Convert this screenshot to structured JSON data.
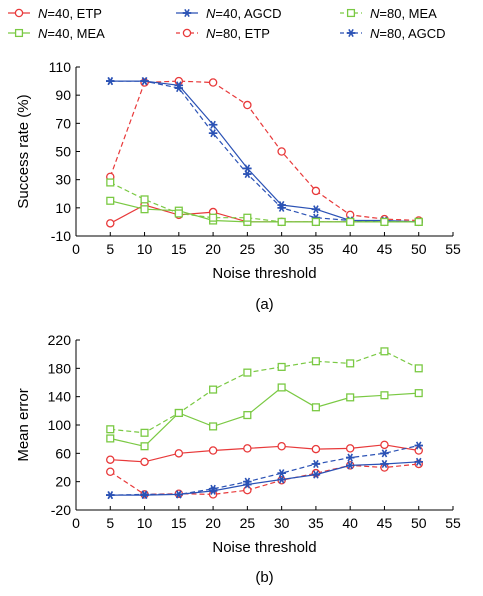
{
  "legend": [
    {
      "series": "N40_ETP",
      "n": "N",
      "rest": "=40, ETP"
    },
    {
      "series": "N40_AGCD",
      "n": "N",
      "rest": "=40, AGCD"
    },
    {
      "series": "N80_MEA",
      "n": "N",
      "rest": "=80, MEA"
    },
    {
      "series": "N40_MEA",
      "n": "N",
      "rest": "=40, MEA"
    },
    {
      "series": "N80_ETP",
      "n": "N",
      "rest": "=80, ETP"
    },
    {
      "series": "N80_AGCD",
      "n": "N",
      "rest": "=80, AGCD"
    }
  ],
  "series_styles": {
    "N40_ETP": {
      "color": "#e8393a",
      "marker": "circle",
      "dash": false
    },
    "N80_ETP": {
      "color": "#e8393a",
      "marker": "circle",
      "dash": true
    },
    "N40_AGCD": {
      "color": "#2b52b5",
      "marker": "star",
      "dash": false
    },
    "N80_AGCD": {
      "color": "#2b52b5",
      "marker": "star",
      "dash": true
    },
    "N40_MEA": {
      "color": "#7ac943",
      "marker": "square",
      "dash": false
    },
    "N80_MEA": {
      "color": "#7ac943",
      "marker": "square",
      "dash": true
    }
  },
  "chart_data": [
    {
      "type": "line",
      "caption": "(a)",
      "xlabel": "Noise threshold",
      "ylabel": "Success rate (%)",
      "xlim": [
        0,
        55
      ],
      "ylim": [
        -10,
        110
      ],
      "xticks": [
        0,
        5,
        10,
        15,
        20,
        25,
        30,
        35,
        40,
        45,
        50,
        55
      ],
      "yticks": [
        -10,
        10,
        30,
        50,
        70,
        90,
        110
      ],
      "x": [
        5,
        10,
        15,
        20,
        25,
        30,
        35,
        40,
        45,
        50
      ],
      "series": [
        {
          "key": "N40_ETP",
          "values": [
            -1,
            12,
            5,
            7,
            0,
            0,
            0,
            0,
            0,
            0
          ]
        },
        {
          "key": "N80_ETP",
          "values": [
            32,
            99,
            100,
            99,
            83,
            50,
            22,
            5,
            2,
            1
          ]
        },
        {
          "key": "N40_AGCD",
          "values": [
            100,
            100,
            97,
            69,
            38,
            12,
            9,
            1,
            1,
            0
          ]
        },
        {
          "key": "N80_AGCD",
          "values": [
            100,
            100,
            95,
            63,
            34,
            10,
            3,
            1,
            0,
            0
          ]
        },
        {
          "key": "N40_MEA",
          "values": [
            15,
            9,
            8,
            1,
            0,
            0,
            0,
            0,
            0,
            0
          ]
        },
        {
          "key": "N80_MEA",
          "values": [
            28,
            16,
            6,
            3,
            3,
            0,
            0,
            0,
            0,
            0
          ]
        }
      ]
    },
    {
      "type": "line",
      "caption": "(b)",
      "xlabel": "Noise threshold",
      "ylabel": "Mean error",
      "xlim": [
        0,
        55
      ],
      "ylim": [
        -20,
        220
      ],
      "xticks": [
        0,
        5,
        10,
        15,
        20,
        25,
        30,
        35,
        40,
        45,
        50,
        55
      ],
      "yticks": [
        -20,
        20,
        60,
        100,
        140,
        180,
        220
      ],
      "x": [
        5,
        10,
        15,
        20,
        25,
        30,
        35,
        40,
        45,
        50
      ],
      "series": [
        {
          "key": "N40_ETP",
          "values": [
            51,
            48,
            60,
            64,
            67,
            70,
            66,
            67,
            72,
            64
          ]
        },
        {
          "key": "N80_ETP",
          "values": [
            34,
            2,
            3,
            2,
            8,
            22,
            32,
            43,
            40,
            45
          ]
        },
        {
          "key": "N40_AGCD",
          "values": [
            1,
            1,
            2,
            7,
            16,
            23,
            30,
            43,
            45,
            48
          ]
        },
        {
          "key": "N80_AGCD",
          "values": [
            1,
            2,
            2,
            10,
            20,
            32,
            45,
            54,
            60,
            71
          ]
        },
        {
          "key": "N40_MEA",
          "values": [
            81,
            70,
            117,
            98,
            114,
            153,
            125,
            139,
            142,
            145
          ]
        },
        {
          "key": "N80_MEA",
          "values": [
            94,
            89,
            117,
            150,
            174,
            182,
            190,
            187,
            204,
            180
          ]
        }
      ]
    }
  ]
}
